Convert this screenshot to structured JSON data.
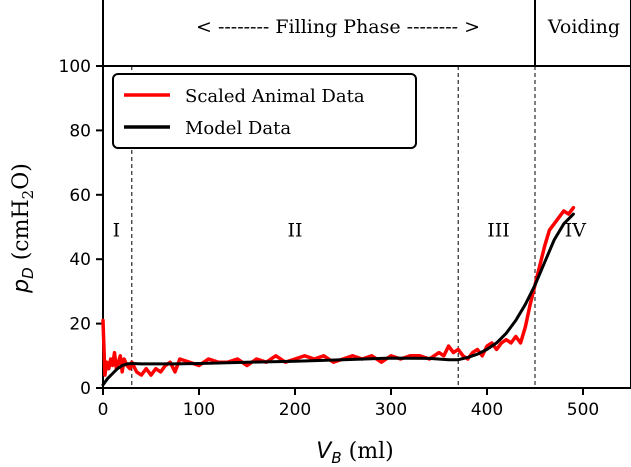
{
  "chart_data": {
    "type": "line",
    "xlabel_main": "V",
    "xlabel_sub": "B",
    "xlabel_unit": " (ml)",
    "ylabel_main": "p",
    "ylabel_sub": "D",
    "ylabel_unit_pre": " (cmH",
    "ylabel_unit_sub": "2",
    "ylabel_unit_post": "O)",
    "xlim": [
      0,
      550
    ],
    "ylim": [
      0,
      100
    ],
    "xticks": [
      0,
      100,
      200,
      300,
      400,
      500
    ],
    "yticks": [
      0,
      20,
      40,
      60,
      80,
      100
    ],
    "phase_boundaries": [
      30,
      370,
      450
    ],
    "phase_labels": [
      {
        "text": "I",
        "x": 14,
        "y": 47
      },
      {
        "text": "II",
        "x": 200,
        "y": 47
      },
      {
        "text": "III",
        "x": 412,
        "y": 47
      },
      {
        "text": "IV",
        "x": 492,
        "y": 47
      }
    ],
    "top_bands": {
      "filling": "< -------- Filling Phase -------- >",
      "voiding": "Voiding",
      "divider_x": 450
    },
    "legend": {
      "placement": "top-left",
      "entries": [
        "Scaled Animal Data",
        "Model Data"
      ]
    },
    "series": [
      {
        "name": "Scaled Animal Data",
        "color": "#ff0000",
        "x": [
          0,
          2,
          4,
          6,
          8,
          10,
          12,
          14,
          16,
          18,
          20,
          22,
          25,
          28,
          30,
          35,
          40,
          45,
          50,
          55,
          60,
          65,
          70,
          75,
          80,
          90,
          100,
          110,
          120,
          130,
          140,
          150,
          160,
          170,
          180,
          190,
          200,
          210,
          220,
          230,
          240,
          250,
          260,
          270,
          280,
          290,
          300,
          310,
          320,
          330,
          340,
          350,
          355,
          360,
          365,
          370,
          375,
          380,
          385,
          390,
          395,
          400,
          405,
          410,
          415,
          420,
          425,
          430,
          435,
          440,
          445,
          450,
          455,
          460,
          465,
          470,
          475,
          480,
          485,
          490
        ],
        "y": [
          21,
          4,
          8,
          6,
          9,
          7,
          11,
          6,
          8,
          10,
          5,
          9,
          7,
          6,
          8,
          5,
          4,
          6,
          4,
          6,
          5,
          7,
          8,
          5,
          9,
          8,
          7,
          9,
          8,
          8,
          9,
          7,
          9,
          8,
          10,
          8,
          9,
          10,
          9,
          10,
          8,
          9,
          10,
          9,
          10,
          8,
          10,
          9,
          10,
          10,
          9,
          11,
          10,
          13,
          11,
          12,
          10,
          9,
          11,
          12,
          10,
          13,
          14,
          12,
          14,
          15,
          14,
          16,
          14,
          19,
          26,
          32,
          38,
          44,
          49,
          51,
          53,
          55,
          54,
          56
        ]
      },
      {
        "name": "Model Data",
        "color": "#000000",
        "x": [
          0,
          5,
          10,
          15,
          20,
          25,
          30,
          40,
          50,
          75,
          100,
          150,
          200,
          250,
          300,
          340,
          360,
          370,
          380,
          390,
          400,
          410,
          420,
          430,
          440,
          450,
          460,
          470,
          480,
          490
        ],
        "y": [
          1,
          3,
          4.5,
          6,
          7,
          7.5,
          7.6,
          7.5,
          7.5,
          7.5,
          7.6,
          8,
          8.3,
          8.8,
          9.3,
          9.2,
          8.8,
          8.8,
          9.5,
          10.5,
          12,
          14,
          17,
          21,
          26,
          32,
          39,
          46,
          51,
          54
        ]
      }
    ]
  }
}
